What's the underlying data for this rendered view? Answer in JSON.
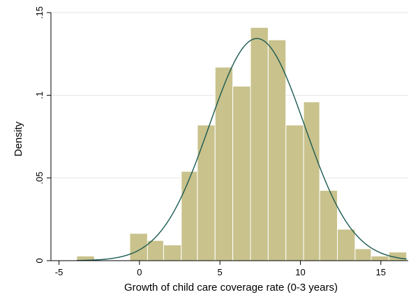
{
  "chart_data": {
    "type": "bar",
    "subtype": "histogram-with-density-curve",
    "xlabel": "Growth of child care coverage rate (0-3 years)",
    "ylabel": "Density",
    "xlim": [
      -5.5,
      16.7
    ],
    "ylim": [
      0,
      0.15
    ],
    "x_ticks": [
      {
        "value": -5,
        "label": "-5"
      },
      {
        "value": 0,
        "label": "0"
      },
      {
        "value": 5,
        "label": "5"
      },
      {
        "value": 10,
        "label": "10"
      },
      {
        "value": 15,
        "label": "15"
      }
    ],
    "y_ticks": [
      {
        "value": 0,
        "label": "0"
      },
      {
        "value": 0.05,
        "label": ".05"
      },
      {
        "value": 0.1,
        "label": ".1"
      },
      {
        "value": 0.15,
        "label": ".15"
      }
    ],
    "bins": [
      {
        "x0": -3.9,
        "x1": -2.8,
        "density": 0.0028
      },
      {
        "x0": -2.8,
        "x1": -1.7,
        "density": 0.0
      },
      {
        "x0": -1.7,
        "x1": -0.6,
        "density": 0.0
      },
      {
        "x0": -0.6,
        "x1": 0.5,
        "density": 0.0165
      },
      {
        "x0": 0.5,
        "x1": 1.5,
        "density": 0.0122
      },
      {
        "x0": 1.5,
        "x1": 2.6,
        "density": 0.0095
      },
      {
        "x0": 2.6,
        "x1": 3.6,
        "density": 0.054
      },
      {
        "x0": 3.6,
        "x1": 4.7,
        "density": 0.082
      },
      {
        "x0": 4.7,
        "x1": 5.8,
        "density": 0.117
      },
      {
        "x0": 5.8,
        "x1": 6.9,
        "density": 0.1055
      },
      {
        "x0": 6.9,
        "x1": 8.0,
        "density": 0.141
      },
      {
        "x0": 8.0,
        "x1": 9.1,
        "density": 0.1335
      },
      {
        "x0": 9.1,
        "x1": 10.2,
        "density": 0.082
      },
      {
        "x0": 10.2,
        "x1": 11.2,
        "density": 0.096
      },
      {
        "x0": 11.2,
        "x1": 12.3,
        "density": 0.0425
      },
      {
        "x0": 12.3,
        "x1": 13.4,
        "density": 0.019
      },
      {
        "x0": 13.4,
        "x1": 14.4,
        "density": 0.0072
      },
      {
        "x0": 14.4,
        "x1": 15.5,
        "density": 0.0028
      },
      {
        "x0": 15.5,
        "x1": 16.6,
        "density": 0.0052
      }
    ],
    "density_curve": {
      "kind": "normal",
      "mean": 7.3,
      "sd": 2.97,
      "x_range": [
        -3.9,
        16.6
      ]
    },
    "colors": {
      "bar_fill": "#c9c28c",
      "bar_stroke": "#ffffff",
      "curve": "#1b5a52",
      "axis": "#000000",
      "grid": "#e6e6e6"
    },
    "grid": true
  }
}
